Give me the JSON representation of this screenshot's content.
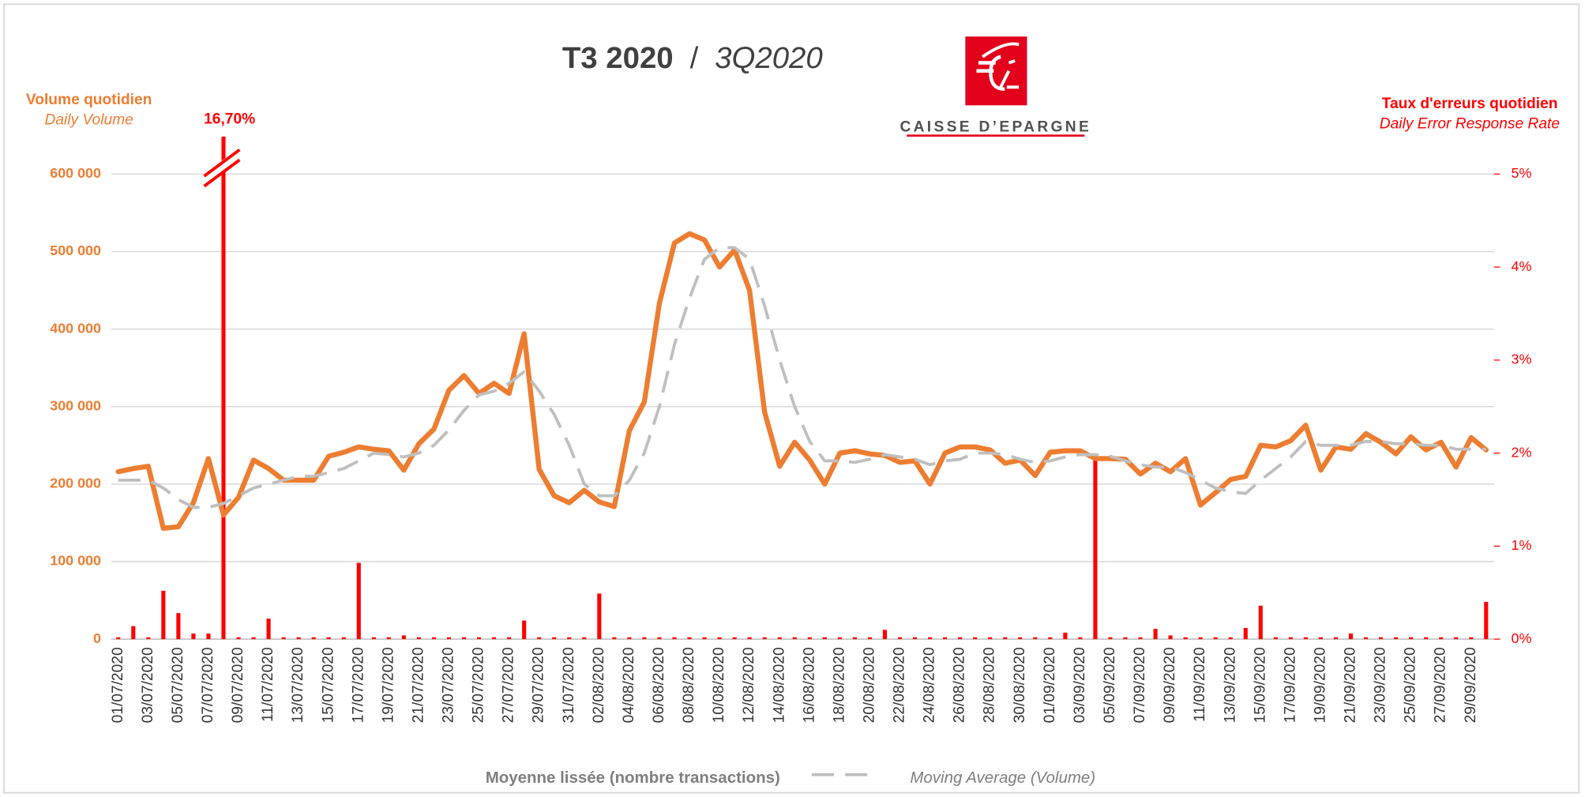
{
  "chart_data": {
    "type": "combo",
    "title": "T3 2020",
    "title_separator": "/",
    "title_en": "3Q2020",
    "brand": "CAISSE D’EPARGNE",
    "y_label": "Volume quotidien",
    "y_label_en": "Daily Volume",
    "y2_label": "Taux d'erreurs quotidien",
    "y2_label_en": "Daily Error Response Rate",
    "categories": [
      "01/07/2020",
      null,
      "03/07/2020",
      null,
      "05/07/2020",
      null,
      "07/07/2020",
      null,
      "09/07/2020",
      null,
      "11/07/2020",
      null,
      "13/07/2020",
      null,
      "15/07/2020",
      null,
      "17/07/2020",
      null,
      "19/07/2020",
      null,
      "21/07/2020",
      null,
      "23/07/2020",
      null,
      "25/07/2020",
      null,
      "27/07/2020",
      null,
      "29/07/2020",
      null,
      "31/07/2020",
      null,
      "02/08/2020",
      null,
      "04/08/2020",
      null,
      "06/08/2020",
      null,
      "08/08/2020",
      null,
      "10/08/2020",
      null,
      "12/08/2020",
      null,
      "14/08/2020",
      null,
      "16/08/2020",
      null,
      "18/08/2020",
      null,
      "20/08/2020",
      null,
      "22/08/2020",
      null,
      "24/08/2020",
      null,
      "26/08/2020",
      null,
      "28/08/2020",
      null,
      "30/08/2020",
      null,
      "01/09/2020",
      null,
      "03/09/2020",
      null,
      "05/09/2020",
      null,
      "07/09/2020",
      null,
      "09/09/2020",
      null,
      "11/09/2020",
      null,
      "13/09/2020",
      null,
      "15/09/2020",
      null,
      "17/09/2020",
      null,
      "19/09/2020",
      null,
      "21/09/2020",
      null,
      "23/09/2020",
      null,
      "25/09/2020",
      null,
      "27/09/2020",
      null,
      "29/09/2020",
      null
    ],
    "series": [
      {
        "type": "line",
        "color": "#ED7D31",
        "values": [
          216000,
          220000,
          223000,
          143000,
          145000,
          176000,
          233000,
          160000,
          183000,
          231000,
          220000,
          205000,
          205000,
          205000,
          236000,
          241000,
          248000,
          245000,
          243000,
          218000,
          252000,
          271000,
          321000,
          340000,
          317000,
          330000,
          317000,
          394000,
          219000,
          185000,
          176000,
          192000,
          177000,
          171000,
          269000,
          306000,
          433000,
          511000,
          523000,
          515000,
          480000,
          502000,
          450000,
          293000,
          223000,
          254000,
          231000,
          200000,
          240000,
          243000,
          239000,
          237000,
          228000,
          230000,
          200000,
          240000,
          248000,
          248000,
          244000,
          227000,
          231000,
          211000,
          241000,
          243000,
          243000,
          233000,
          233000,
          232000,
          213000,
          227000,
          216000,
          233000,
          173000,
          189000,
          206000,
          210000,
          250000,
          248000,
          256000,
          276000,
          218000,
          248000,
          245000,
          265000,
          254000,
          239000,
          261000,
          244000,
          254000,
          222000,
          260000,
          244000
        ]
      },
      {
        "type": "line",
        "name": "Moyenne lissée (nombre transactions)",
        "name_en": "Moving  Average (Volume)",
        "color": "#BFBFBF",
        "dashed": true,
        "values": [
          205000,
          205000,
          205000,
          195000,
          180000,
          170000,
          170000,
          175000,
          185000,
          195000,
          200000,
          205000,
          210000,
          210000,
          215000,
          220000,
          230000,
          240000,
          238000,
          235000,
          240000,
          250000,
          270000,
          295000,
          315000,
          320000,
          330000,
          345000,
          320000,
          290000,
          250000,
          200000,
          185000,
          185000,
          205000,
          240000,
          300000,
          380000,
          440000,
          490000,
          505000,
          505000,
          490000,
          430000,
          360000,
          300000,
          255000,
          230000,
          230000,
          228000,
          232000,
          238000,
          235000,
          232000,
          225000,
          230000,
          232000,
          240000,
          240000,
          238000,
          232000,
          228000,
          230000,
          235000,
          238000,
          238000,
          236000,
          230000,
          225000,
          222000,
          222000,
          215000,
          205000,
          195000,
          190000,
          188000,
          205000,
          220000,
          235000,
          255000,
          250000,
          250000,
          250000,
          255000,
          255000,
          252000,
          252000,
          250000,
          250000,
          245000,
          245000,
          245000
        ]
      },
      {
        "type": "bar",
        "axis": "y2",
        "color": "#FF0000",
        "values": [
          0.02,
          0.14,
          0.02,
          0.52,
          0.28,
          0.06,
          0.06,
          16.7,
          0.02,
          0.02,
          0.22,
          0.02,
          0.02,
          0.02,
          0.02,
          0.02,
          0.82,
          0.02,
          0.02,
          0.04,
          0.02,
          0.02,
          0.02,
          0.02,
          0.02,
          0.02,
          0.02,
          0.2,
          0.02,
          0.02,
          0.02,
          0.02,
          0.49,
          0.02,
          0.02,
          0.02,
          0.02,
          0.02,
          0.02,
          0.02,
          0.02,
          0.02,
          0.02,
          0.02,
          0.02,
          0.02,
          0.02,
          0.02,
          0.02,
          0.02,
          0.02,
          0.1,
          0.02,
          0.02,
          0.02,
          0.02,
          0.02,
          0.02,
          0.02,
          0.02,
          0.02,
          0.02,
          0.02,
          0.07,
          0.02,
          1.98,
          0.02,
          0.02,
          0.02,
          0.11,
          0.04,
          0.02,
          0.02,
          0.02,
          0.02,
          0.12,
          0.36,
          0.02,
          0.02,
          0.02,
          0.02,
          0.02,
          0.06,
          0.02,
          0.02,
          0.02,
          0.02,
          0.02,
          0.02,
          0.02,
          0.02,
          0.4
        ],
        "value_labels": [
          null,
          null,
          null,
          null,
          null,
          null,
          null,
          "16,70%",
          null,
          null,
          null,
          null,
          null,
          null,
          null,
          null,
          null,
          null,
          null,
          null,
          null,
          null,
          null,
          null,
          null,
          null,
          null,
          null,
          null,
          null,
          null,
          null,
          null,
          null,
          null,
          null,
          null,
          null,
          null,
          null,
          null,
          null,
          null,
          null,
          null,
          null,
          null,
          null,
          null,
          null,
          null,
          null,
          null,
          null,
          null,
          null,
          null,
          null,
          null,
          null,
          null,
          null,
          null,
          null,
          null,
          null,
          null,
          null,
          null,
          null,
          null,
          null,
          null,
          null,
          null,
          null,
          null,
          null,
          null,
          null,
          null,
          null,
          null,
          null,
          null,
          null,
          null,
          null,
          null,
          null,
          null,
          null
        ]
      }
    ],
    "ylim": [
      0,
      600000
    ],
    "yticks": [
      0,
      {
        "value": 100000,
        "label": "100 000"
      },
      {
        "value": 200000,
        "label": "200 000"
      },
      {
        "value": 300000,
        "label": "300 000"
      },
      {
        "value": 400000,
        "label": "400 000"
      },
      {
        "value": 500000,
        "label": "500 000"
      },
      {
        "value": 600000,
        "label": "600 000"
      }
    ],
    "y2lim": [
      0,
      5
    ],
    "y2ticks": [
      {
        "value": 0,
        "label": "0%"
      },
      {
        "value": 1,
        "label": "1%"
      },
      {
        "value": 2,
        "label": "2%"
      },
      {
        "value": 3,
        "label": "3%"
      },
      {
        "value": 4,
        "label": "4%"
      },
      {
        "value": 5,
        "label": "5%"
      }
    ],
    "grid": true
  }
}
